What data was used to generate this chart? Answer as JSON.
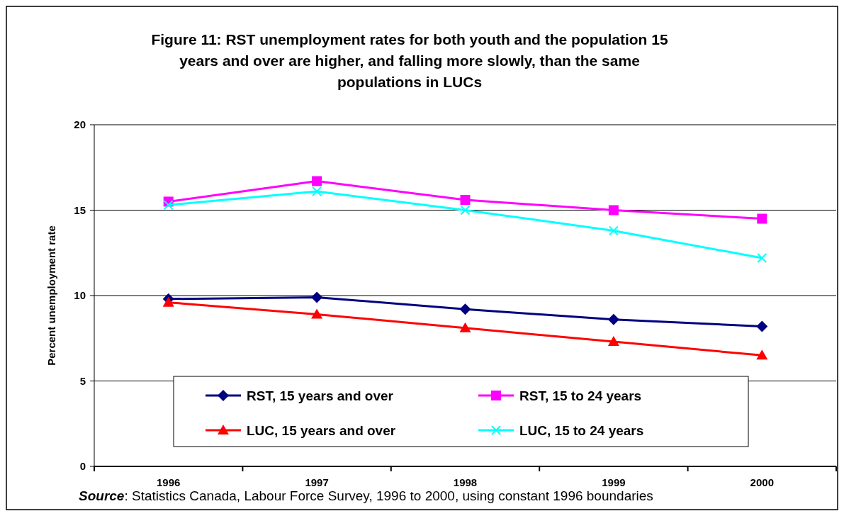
{
  "chart_data": {
    "type": "line",
    "title": "Figure 11: RST unemployment rates for both youth and the population 15 years and over are higher, and falling more slowly, than the same populations in LUCs",
    "ylabel": "Percent unemployment rate",
    "annotations": [
      "Source: Statistics Canada, Labour Force Survey, 1996 to 2000, using constant 1996 boundaries"
    ],
    "categories": [
      "1996",
      "1997",
      "1998",
      "1999",
      "2000"
    ],
    "series": [
      {
        "name": "RST, 15 years and over",
        "color": "#000080",
        "marker": "diamond",
        "values": [
          9.8,
          9.9,
          9.2,
          8.6,
          8.2
        ]
      },
      {
        "name": "RST, 15 to 24 years",
        "color": "#ff00ff",
        "marker": "square",
        "values": [
          15.5,
          16.7,
          15.6,
          15.0,
          14.5
        ]
      },
      {
        "name": "LUC, 15 years and over",
        "color": "#ff0000",
        "marker": "triangle",
        "values": [
          9.6,
          8.9,
          8.1,
          7.3,
          6.5
        ]
      },
      {
        "name": "LUC, 15 to 24 years",
        "color": "#00ffff",
        "marker": "cross",
        "values": [
          15.3,
          16.1,
          15.0,
          13.8,
          12.2
        ]
      }
    ],
    "ylim": [
      0,
      20
    ],
    "yticks": [
      0,
      5,
      10,
      15,
      20
    ],
    "grid": "y",
    "legend": "bottom"
  }
}
